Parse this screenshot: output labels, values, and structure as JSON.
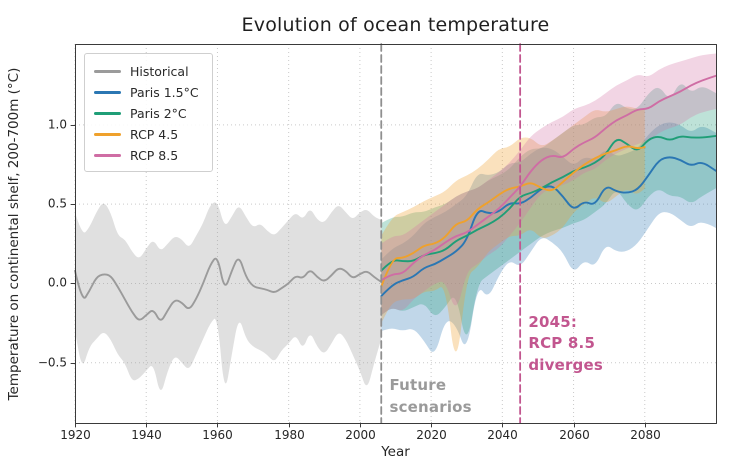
{
  "chart_data": {
    "type": "line",
    "title": "Evolution of ocean temperature",
    "xlabel": "Year",
    "ylabel": "Temperature on continental shelf, 200-700m (°C)",
    "xlim": [
      1920,
      2100
    ],
    "ylim": [
      -0.88,
      1.51
    ],
    "xticks": [
      1920,
      1940,
      1960,
      1980,
      2000,
      2020,
      2040,
      2060,
      2080
    ],
    "yticks": [
      {
        "v": -0.5,
        "label": "−0.5"
      },
      {
        "v": 0.0,
        "label": "0.0"
      },
      {
        "v": 0.5,
        "label": "0.5"
      },
      {
        "v": 1.0,
        "label": "1.0"
      }
    ],
    "grid": true,
    "legend": {
      "position": "upper left",
      "entries": [
        {
          "id": "historical",
          "label": "Historical",
          "color": "#9b9b9b"
        },
        {
          "id": "paris-1-5",
          "label": "Paris 1.5°C",
          "color": "#2b77b3"
        },
        {
          "id": "paris-2",
          "label": "Paris 2°C",
          "color": "#1f9e77"
        },
        {
          "id": "rcp-4-5",
          "label": "RCP 4.5",
          "color": "#efa12c"
        },
        {
          "id": "rcp-8-5",
          "label": "RCP 8.5",
          "color": "#cf6da4"
        }
      ]
    },
    "vlines": [
      {
        "x": 2006,
        "color": "#8f8f8f",
        "style": "dashed"
      },
      {
        "x": 2045,
        "color": "#c2568f",
        "style": "dashed"
      }
    ],
    "annotations": [
      {
        "id": "future-scenarios-label",
        "text": "Future\nscenarios",
        "x": 2008.3,
        "y": -0.58,
        "color": "#9a9a9a"
      },
      {
        "id": "rcp85-diverges-label",
        "text": "2045:\nRCP 8.5\ndiverges",
        "x": 2047.3,
        "y": -0.18,
        "color": "#c2568f"
      }
    ],
    "series": [
      {
        "id": "historical",
        "name": "Historical",
        "color": "#9b9b9b",
        "band_fill": "rgba(160,160,160,0.32)",
        "x": [
          1920,
          1922,
          1924,
          1926,
          1928,
          1930,
          1932,
          1934,
          1936,
          1938,
          1940,
          1942,
          1944,
          1946,
          1948,
          1950,
          1952,
          1954,
          1956,
          1958,
          1960,
          1962,
          1964,
          1966,
          1968,
          1970,
          1972,
          1974,
          1976,
          1978,
          1980,
          1982,
          1984,
          1986,
          1988,
          1990,
          1992,
          1994,
          1996,
          1998,
          2000,
          2002,
          2004,
          2006
        ],
        "mean": [
          0.08,
          -0.12,
          -0.05,
          0.04,
          0.06,
          0.05,
          -0.02,
          -0.1,
          -0.18,
          -0.24,
          -0.2,
          -0.16,
          -0.25,
          -0.17,
          -0.1,
          -0.12,
          -0.17,
          -0.1,
          0.0,
          0.12,
          0.18,
          -0.05,
          0.08,
          0.18,
          0.04,
          -0.02,
          -0.03,
          -0.04,
          -0.06,
          -0.03,
          0.0,
          0.05,
          0.03,
          0.09,
          0.04,
          0.01,
          0.05,
          0.1,
          0.08,
          0.03,
          0.06,
          0.08,
          0.04,
          0.01
        ],
        "upper": [
          0.45,
          0.3,
          0.35,
          0.45,
          0.52,
          0.45,
          0.3,
          0.28,
          0.2,
          0.15,
          0.22,
          0.28,
          0.2,
          0.25,
          0.3,
          0.28,
          0.22,
          0.3,
          0.38,
          0.5,
          0.52,
          0.35,
          0.42,
          0.5,
          0.42,
          0.35,
          0.38,
          0.33,
          0.3,
          0.35,
          0.4,
          0.45,
          0.4,
          0.48,
          0.4,
          0.38,
          0.45,
          0.5,
          0.45,
          0.4,
          0.45,
          0.47,
          0.42,
          0.4
        ],
        "lower": [
          -0.3,
          -0.55,
          -0.4,
          -0.35,
          -0.3,
          -0.35,
          -0.45,
          -0.5,
          -0.62,
          -0.6,
          -0.55,
          -0.5,
          -0.72,
          -0.55,
          -0.45,
          -0.5,
          -0.55,
          -0.45,
          -0.35,
          -0.25,
          -0.2,
          -0.72,
          -0.45,
          -0.2,
          -0.35,
          -0.4,
          -0.42,
          -0.45,
          -0.5,
          -0.42,
          -0.38,
          -0.32,
          -0.42,
          -0.3,
          -0.4,
          -0.45,
          -0.38,
          -0.3,
          -0.35,
          -0.45,
          -0.55,
          -0.68,
          -0.5,
          -0.35
        ]
      },
      {
        "id": "paris-1-5",
        "name": "Paris 1.5°C",
        "color": "#2b77b3",
        "band_fill": "rgba(62,132,187,0.32)",
        "x": [
          2006,
          2009,
          2012,
          2015,
          2018,
          2021,
          2024,
          2027,
          2030,
          2033,
          2036,
          2039,
          2042,
          2045,
          2048,
          2051,
          2054,
          2057,
          2060,
          2063,
          2066,
          2069,
          2072,
          2075,
          2078,
          2081,
          2084,
          2087,
          2090,
          2093,
          2096,
          2100
        ],
        "mean": [
          -0.08,
          -0.01,
          0.02,
          0.04,
          0.1,
          0.12,
          0.16,
          0.2,
          0.27,
          0.47,
          0.44,
          0.45,
          0.51,
          0.5,
          0.54,
          0.6,
          0.62,
          0.55,
          0.46,
          0.52,
          0.49,
          0.62,
          0.58,
          0.57,
          0.59,
          0.68,
          0.78,
          0.8,
          0.78,
          0.74,
          0.77,
          0.71
        ],
        "upper": [
          0.15,
          0.22,
          0.25,
          0.3,
          0.38,
          0.42,
          0.45,
          0.5,
          0.55,
          0.7,
          0.68,
          0.7,
          0.76,
          0.76,
          0.82,
          0.86,
          0.85,
          0.8,
          0.74,
          0.8,
          0.78,
          0.85,
          0.8,
          0.82,
          0.85,
          0.94,
          1.0,
          1.02,
          1.0,
          0.95,
          1.0,
          0.95
        ],
        "lower": [
          -0.3,
          -0.28,
          -0.3,
          -0.28,
          -0.36,
          -0.47,
          -0.22,
          -0.26,
          -0.45,
          0.0,
          -0.1,
          0.05,
          0.15,
          0.1,
          0.2,
          0.3,
          0.26,
          0.2,
          0.06,
          0.15,
          0.1,
          0.25,
          0.2,
          0.2,
          0.25,
          0.35,
          0.45,
          0.45,
          0.4,
          0.35,
          0.4,
          0.35
        ]
      },
      {
        "id": "paris-2",
        "name": "Paris 2°C",
        "color": "#1f9e77",
        "band_fill": "rgba(40,160,125,0.30)",
        "x": [
          2006,
          2009,
          2012,
          2015,
          2018,
          2021,
          2024,
          2027,
          2030,
          2033,
          2036,
          2039,
          2042,
          2045,
          2048,
          2051,
          2054,
          2057,
          2060,
          2063,
          2066,
          2069,
          2072,
          2075,
          2078,
          2081,
          2084,
          2087,
          2090,
          2093,
          2096,
          2100
        ],
        "mean": [
          0.08,
          0.15,
          0.14,
          0.14,
          0.18,
          0.19,
          0.21,
          0.27,
          0.3,
          0.34,
          0.37,
          0.41,
          0.47,
          0.55,
          0.57,
          0.6,
          0.64,
          0.67,
          0.71,
          0.73,
          0.76,
          0.81,
          0.92,
          0.88,
          0.83,
          0.91,
          0.93,
          0.9,
          0.93,
          0.92,
          0.92,
          0.93
        ],
        "upper": [
          0.38,
          0.42,
          0.42,
          0.45,
          0.45,
          0.48,
          0.5,
          0.55,
          0.58,
          0.6,
          0.65,
          0.68,
          0.72,
          0.8,
          0.85,
          0.85,
          0.9,
          0.95,
          1.0,
          1.0,
          1.05,
          1.05,
          1.15,
          1.1,
          1.1,
          1.2,
          1.25,
          1.15,
          1.28,
          1.2,
          1.25,
          1.2
        ],
        "lower": [
          -0.2,
          -0.15,
          -0.18,
          -0.15,
          -0.12,
          -0.22,
          -0.15,
          -0.05,
          -0.42,
          0.0,
          0.05,
          0.1,
          0.15,
          0.2,
          0.25,
          0.3,
          0.33,
          0.35,
          0.38,
          0.4,
          0.45,
          0.5,
          0.6,
          0.5,
          0.45,
          0.55,
          0.6,
          0.55,
          0.55,
          0.5,
          0.55,
          0.6
        ]
      },
      {
        "id": "rcp-4-5",
        "name": "RCP 4.5",
        "color": "#efa12c",
        "band_fill": "rgba(240,163,50,0.32)",
        "x": [
          2006,
          2009,
          2012,
          2015,
          2018,
          2021,
          2024,
          2027,
          2030,
          2033,
          2036,
          2039,
          2042,
          2045,
          2048,
          2051,
          2054,
          2057,
          2060,
          2063,
          2066,
          2069,
          2072,
          2075,
          2078,
          2080
        ],
        "mean": [
          -0.02,
          0.16,
          0.16,
          0.19,
          0.24,
          0.25,
          0.29,
          0.38,
          0.39,
          0.47,
          0.51,
          0.56,
          0.6,
          0.61,
          0.64,
          0.6,
          0.58,
          0.64,
          0.7,
          0.75,
          0.79,
          0.82,
          0.84,
          0.87,
          0.85,
          0.86
        ],
        "upper": [
          0.3,
          0.42,
          0.45,
          0.48,
          0.52,
          0.55,
          0.58,
          0.65,
          0.68,
          0.72,
          0.78,
          0.85,
          0.86,
          0.92,
          0.92,
          0.86,
          0.9,
          0.95,
          1.0,
          1.05,
          1.1,
          1.08,
          1.1,
          1.12,
          1.1,
          1.1
        ],
        "lower": [
          -0.25,
          -0.12,
          -0.1,
          -0.1,
          -0.05,
          -0.05,
          0.0,
          -0.58,
          0.05,
          0.1,
          0.2,
          0.25,
          0.3,
          0.3,
          0.35,
          0.28,
          0.3,
          0.35,
          0.45,
          0.5,
          0.55,
          0.5,
          0.55,
          0.6,
          0.55,
          0.6
        ]
      },
      {
        "id": "rcp-8-5",
        "name": "RCP 8.5",
        "color": "#cf6da4",
        "band_fill": "rgba(212,115,165,0.30)",
        "x": [
          2006,
          2009,
          2012,
          2015,
          2018,
          2021,
          2024,
          2027,
          2030,
          2033,
          2036,
          2039,
          2042,
          2045,
          2048,
          2051,
          2054,
          2057,
          2060,
          2063,
          2066,
          2069,
          2072,
          2075,
          2078,
          2081,
          2084,
          2087,
          2090,
          2093,
          2096,
          2100
        ],
        "mean": [
          0.02,
          0.06,
          0.06,
          0.13,
          0.18,
          0.21,
          0.26,
          0.3,
          0.32,
          0.37,
          0.42,
          0.47,
          0.54,
          0.61,
          0.71,
          0.78,
          0.81,
          0.79,
          0.85,
          0.89,
          0.92,
          0.98,
          1.03,
          1.06,
          1.1,
          1.1,
          1.15,
          1.18,
          1.21,
          1.25,
          1.28,
          1.31
        ],
        "upper": [
          0.25,
          0.3,
          0.3,
          0.35,
          0.4,
          0.45,
          0.5,
          0.55,
          0.58,
          0.6,
          0.65,
          0.7,
          0.76,
          0.84,
          0.93,
          0.98,
          1.02,
          1.05,
          1.1,
          1.12,
          1.15,
          1.2,
          1.25,
          1.28,
          1.32,
          1.3,
          1.35,
          1.38,
          1.4,
          1.42,
          1.44,
          1.45
        ],
        "lower": [
          -0.2,
          -0.15,
          -0.18,
          -0.1,
          -0.05,
          0.0,
          0.02,
          -0.2,
          0.08,
          0.12,
          0.18,
          0.22,
          0.3,
          0.38,
          0.48,
          0.57,
          0.6,
          0.62,
          0.65,
          0.7,
          0.72,
          0.78,
          0.82,
          0.85,
          0.88,
          0.9,
          0.95,
          0.98,
          1.0,
          1.05,
          1.08,
          1.1
        ]
      }
    ]
  }
}
